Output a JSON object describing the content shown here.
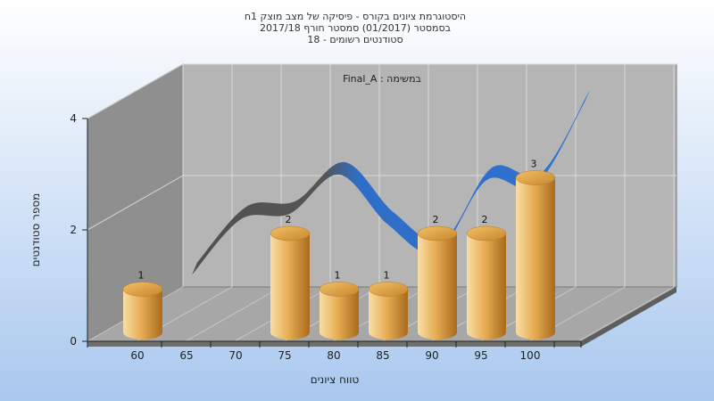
{
  "chart_data": {
    "type": "bar",
    "title_lines": [
      "היסטוגרמת ציונים בקורס - פיסיקה של מצב מוצק 1ח",
      "בסמסטר  (01/2017)  סמסטר חורף 2017/18",
      "סטודנטים רשומים - 18"
    ],
    "subtitle": "Final_A : במשימה",
    "xlabel": "טווח ציונים",
    "ylabel": "מספר סטודנטים",
    "x_ticks": [
      "60",
      "65",
      "70",
      "75",
      "80",
      "85",
      "90",
      "95",
      "100"
    ],
    "y_ticks": [
      "0",
      "2",
      "4"
    ],
    "ylim": [
      0,
      4
    ],
    "bars": [
      {
        "x": 60,
        "value": 1,
        "label": "1"
      },
      {
        "x": 75,
        "value": 2,
        "label": "2"
      },
      {
        "x": 80,
        "value": 1,
        "label": "1"
      },
      {
        "x": 85,
        "value": 1,
        "label": "1"
      },
      {
        "x": 90,
        "value": 2,
        "label": "2"
      },
      {
        "x": 95,
        "value": 2,
        "label": "2"
      },
      {
        "x": 100,
        "value": 3,
        "label": "3"
      }
    ],
    "curve": {
      "x": [
        60,
        65,
        70,
        75,
        80,
        85,
        90,
        95,
        100
      ],
      "y": [
        1.0,
        2.0,
        2.1,
        2.8,
        1.9,
        1.4,
        2.7,
        2.6,
        4.1
      ]
    },
    "grid": true,
    "colors": {
      "background_top": "#ffffff",
      "background_bottom": "#a9c8ee",
      "back_wall": "#b3b3b3",
      "left_wall": "#8e8e8e",
      "floor": "#a6a6a6",
      "bar_light": "#f7d99a",
      "bar_mid": "#e7ad53",
      "bar_dark": "#a86a1c",
      "curve_front": "#4a4a4a",
      "curve_back": "#2e6ec9"
    }
  }
}
